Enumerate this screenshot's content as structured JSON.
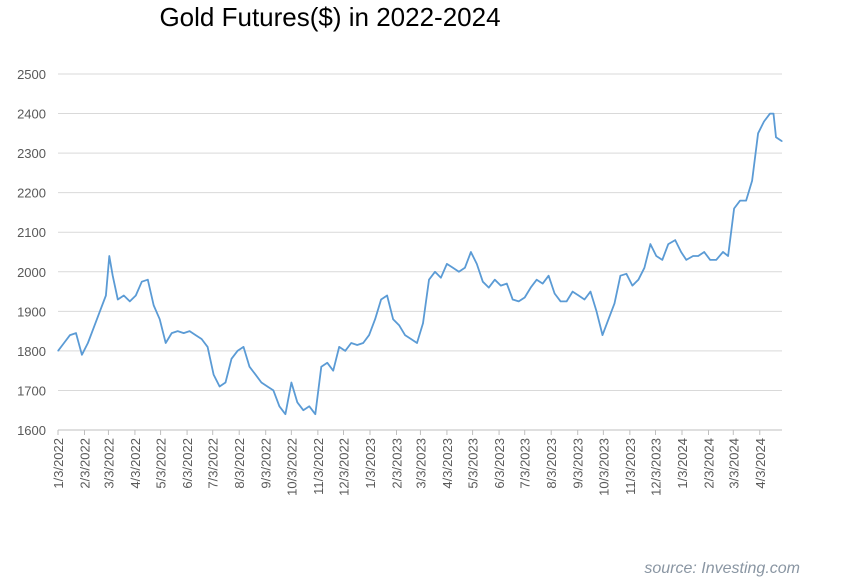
{
  "chart_data": {
    "type": "line",
    "title": "Gold Futures($) in 2022-2024",
    "source": "source: Investing.com",
    "xlabel": "",
    "ylabel": "",
    "ylim": [
      1600,
      2500
    ],
    "yticks": [
      1600,
      1700,
      1800,
      1900,
      2000,
      2100,
      2200,
      2300,
      2400,
      2500
    ],
    "grid": true,
    "x_tick_labels": [
      "1/3/2022",
      "2/3/2022",
      "3/3/2022",
      "4/3/2022",
      "5/3/2022",
      "6/3/2022",
      "7/3/2022",
      "8/3/2022",
      "9/3/2022",
      "10/3/2022",
      "11/3/2022",
      "12/3/2022",
      "1/3/2023",
      "2/3/2023",
      "3/3/2023",
      "4/3/2023",
      "5/3/2023",
      "6/3/2023",
      "7/3/2023",
      "8/3/2023",
      "9/3/2023",
      "10/3/2023",
      "11/3/2023",
      "12/3/2023",
      "1/3/2024",
      "2/3/2024",
      "3/3/2024",
      "4/3/2024"
    ],
    "series": [
      {
        "color": "#5b9bd5",
        "x": [
          "2022-01-03",
          "2022-01-10",
          "2022-01-17",
          "2022-01-24",
          "2022-01-31",
          "2022-02-07",
          "2022-02-14",
          "2022-02-21",
          "2022-02-28",
          "2022-03-04",
          "2022-03-08",
          "2022-03-14",
          "2022-03-21",
          "2022-03-28",
          "2022-04-04",
          "2022-04-11",
          "2022-04-18",
          "2022-04-25",
          "2022-05-02",
          "2022-05-09",
          "2022-05-16",
          "2022-05-23",
          "2022-05-30",
          "2022-06-06",
          "2022-06-13",
          "2022-06-20",
          "2022-06-27",
          "2022-07-04",
          "2022-07-11",
          "2022-07-18",
          "2022-07-25",
          "2022-08-01",
          "2022-08-08",
          "2022-08-15",
          "2022-08-22",
          "2022-08-29",
          "2022-09-05",
          "2022-09-12",
          "2022-09-19",
          "2022-09-26",
          "2022-10-03",
          "2022-10-10",
          "2022-10-17",
          "2022-10-24",
          "2022-10-31",
          "2022-11-07",
          "2022-11-14",
          "2022-11-21",
          "2022-11-28",
          "2022-12-05",
          "2022-12-12",
          "2022-12-19",
          "2022-12-26",
          "2023-01-02",
          "2023-01-09",
          "2023-01-16",
          "2023-01-23",
          "2023-01-30",
          "2023-02-06",
          "2023-02-13",
          "2023-02-20",
          "2023-02-27",
          "2023-03-06",
          "2023-03-13",
          "2023-03-20",
          "2023-03-27",
          "2023-04-03",
          "2023-04-10",
          "2023-04-17",
          "2023-04-24",
          "2023-05-01",
          "2023-05-08",
          "2023-05-15",
          "2023-05-22",
          "2023-05-29",
          "2023-06-05",
          "2023-06-12",
          "2023-06-19",
          "2023-06-26",
          "2023-07-03",
          "2023-07-10",
          "2023-07-17",
          "2023-07-24",
          "2023-07-31",
          "2023-08-07",
          "2023-08-14",
          "2023-08-21",
          "2023-08-28",
          "2023-09-04",
          "2023-09-11",
          "2023-09-18",
          "2023-09-25",
          "2023-10-02",
          "2023-10-09",
          "2023-10-16",
          "2023-10-23",
          "2023-10-30",
          "2023-11-06",
          "2023-11-13",
          "2023-11-20",
          "2023-11-27",
          "2023-12-04",
          "2023-12-11",
          "2023-12-18",
          "2023-12-26",
          "2024-01-02",
          "2024-01-08",
          "2024-01-16",
          "2024-01-22",
          "2024-01-29",
          "2024-02-05",
          "2024-02-12",
          "2024-02-20",
          "2024-02-26",
          "2024-03-04",
          "2024-03-11",
          "2024-03-18",
          "2024-03-25",
          "2024-04-01",
          "2024-04-08",
          "2024-04-15",
          "2024-04-19",
          "2024-04-22",
          "2024-04-29"
        ],
        "y": [
          1800,
          1820,
          1840,
          1845,
          1790,
          1820,
          1860,
          1900,
          1940,
          2040,
          1990,
          1930,
          1940,
          1925,
          1940,
          1975,
          1980,
          1915,
          1880,
          1820,
          1845,
          1850,
          1845,
          1850,
          1840,
          1830,
          1810,
          1740,
          1710,
          1720,
          1780,
          1800,
          1810,
          1760,
          1740,
          1720,
          1710,
          1700,
          1660,
          1640,
          1720,
          1670,
          1650,
          1660,
          1640,
          1760,
          1770,
          1750,
          1810,
          1800,
          1820,
          1815,
          1820,
          1840,
          1880,
          1930,
          1940,
          1880,
          1865,
          1840,
          1830,
          1820,
          1870,
          1980,
          2000,
          1985,
          2020,
          2010,
          2000,
          2010,
          2050,
          2020,
          1975,
          1960,
          1980,
          1965,
          1970,
          1930,
          1925,
          1935,
          1960,
          1980,
          1970,
          1990,
          1945,
          1925,
          1925,
          1950,
          1940,
          1930,
          1950,
          1900,
          1840,
          1880,
          1920,
          1990,
          1995,
          1965,
          1980,
          2010,
          2070,
          2040,
          2030,
          2070,
          2080,
          2050,
          2030,
          2040,
          2040,
          2050,
          2030,
          2030,
          2050,
          2040,
          2160,
          2180,
          2180,
          2230,
          2350,
          2380,
          2400,
          2400,
          2340,
          2330
        ]
      }
    ]
  }
}
